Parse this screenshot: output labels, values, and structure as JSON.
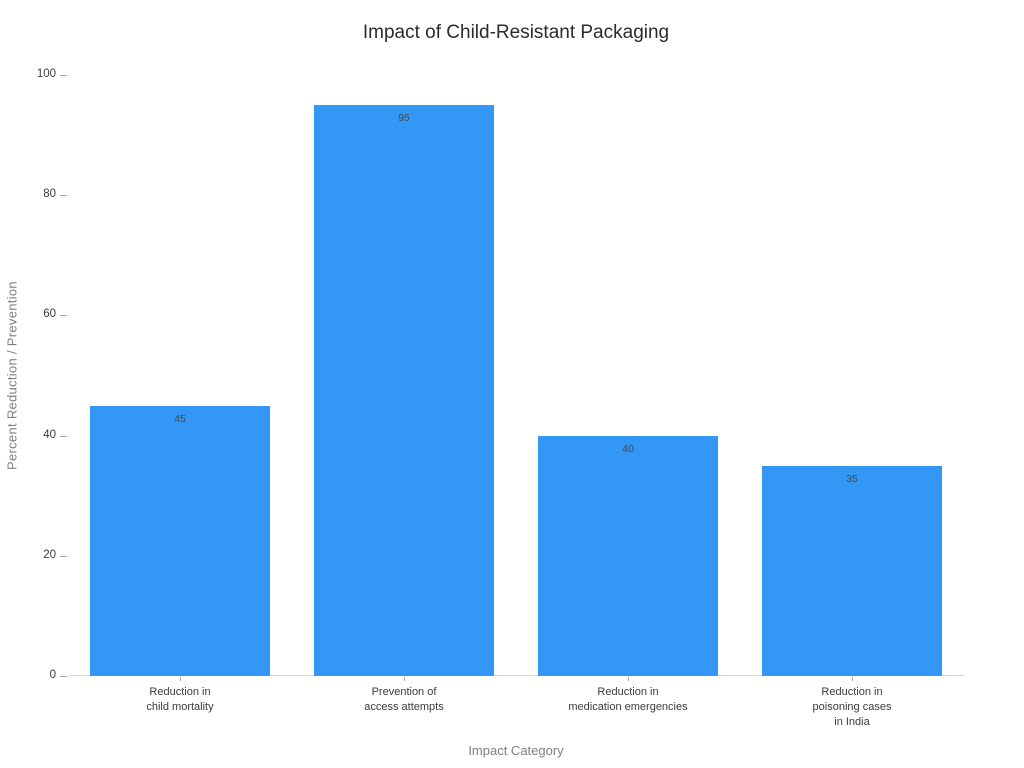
{
  "chart_data": {
    "type": "bar",
    "title": "Impact of Child-Resistant Packaging",
    "xlabel": "Impact Category",
    "ylabel": "Percent Reduction / Prevention",
    "categories": [
      "Reduction in\nchild mortality",
      "Prevention of\naccess attempts",
      "Reduction in\nmedication emergencies",
      "Reduction in\npoisoning cases\nin India"
    ],
    "values": [
      45,
      95,
      40,
      35
    ],
    "value_labels": [
      "45",
      "95",
      "40",
      "35"
    ],
    "ylim": [
      0,
      100
    ],
    "yticks": [
      0,
      20,
      40,
      60,
      80,
      100
    ],
    "grid": false,
    "legend": "none",
    "bar_color": "#3398F5",
    "value_label_color": "#3f4a52",
    "axis_line_color": "#d9d9d9"
  }
}
